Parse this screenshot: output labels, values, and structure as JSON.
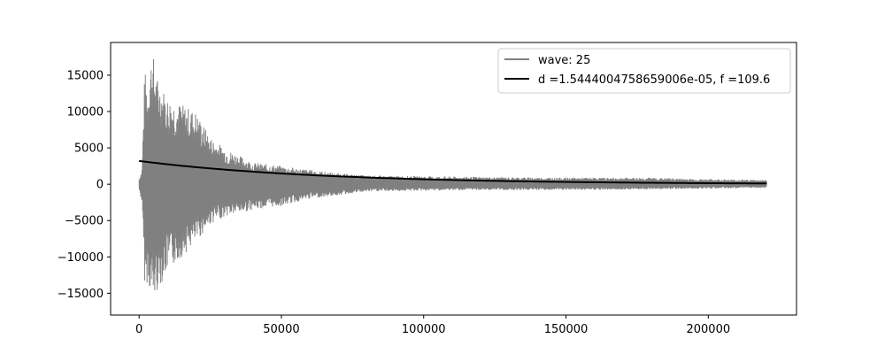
{
  "chart_data": {
    "type": "line",
    "title": "",
    "xlabel": "",
    "ylabel": "",
    "xlim": [
      -10000,
      231000
    ],
    "ylim": [
      -18000,
      19500
    ],
    "xticks": [
      0,
      50000,
      100000,
      150000,
      200000
    ],
    "xtick_labels": [
      "0",
      "50000",
      "100000",
      "150000",
      "200000"
    ],
    "yticks": [
      -15000,
      -10000,
      -5000,
      0,
      5000,
      10000,
      15000
    ],
    "ytick_labels": [
      "−15000",
      "−10000",
      "−5000",
      "0",
      "5000",
      "10000",
      "15000"
    ],
    "grid": false,
    "legend_position": "top-right",
    "series": [
      {
        "name": "wave: 25",
        "color": "#808080",
        "kind": "oscillating waveform envelope",
        "x_range": [
          0,
          220500
        ],
        "envelope": {
          "x": [
            0,
            1000,
            2000,
            3000,
            4000,
            5000,
            6000,
            8000,
            10000,
            15000,
            20000,
            25000,
            30000,
            40000,
            50000,
            60000,
            70000,
            80000,
            100000,
            120000,
            150000,
            180000,
            200000,
            220500
          ],
          "upper": [
            800,
            2000,
            16000,
            13000,
            17500,
            17800,
            15000,
            13500,
            12000,
            11000,
            10000,
            6500,
            5000,
            3000,
            2500,
            2000,
            1500,
            1200,
            1100,
            1000,
            900,
            900,
            700,
            600
          ],
          "lower": [
            -800,
            -2500,
            -14000,
            -13500,
            -15000,
            -16500,
            -15000,
            -13500,
            -12000,
            -10000,
            -8000,
            -5500,
            -4500,
            -3500,
            -3000,
            -2000,
            -1500,
            -1000,
            -900,
            -800,
            -800,
            -700,
            -600,
            -500
          ]
        }
      },
      {
        "name": "d =1.5444004758659006e-05, f =109.6",
        "color": "#000000",
        "kind": "exponential decay fit",
        "amplitude": 3200,
        "decay": 1.5444004758659006e-05,
        "x_range": [
          0,
          220500
        ]
      }
    ]
  }
}
